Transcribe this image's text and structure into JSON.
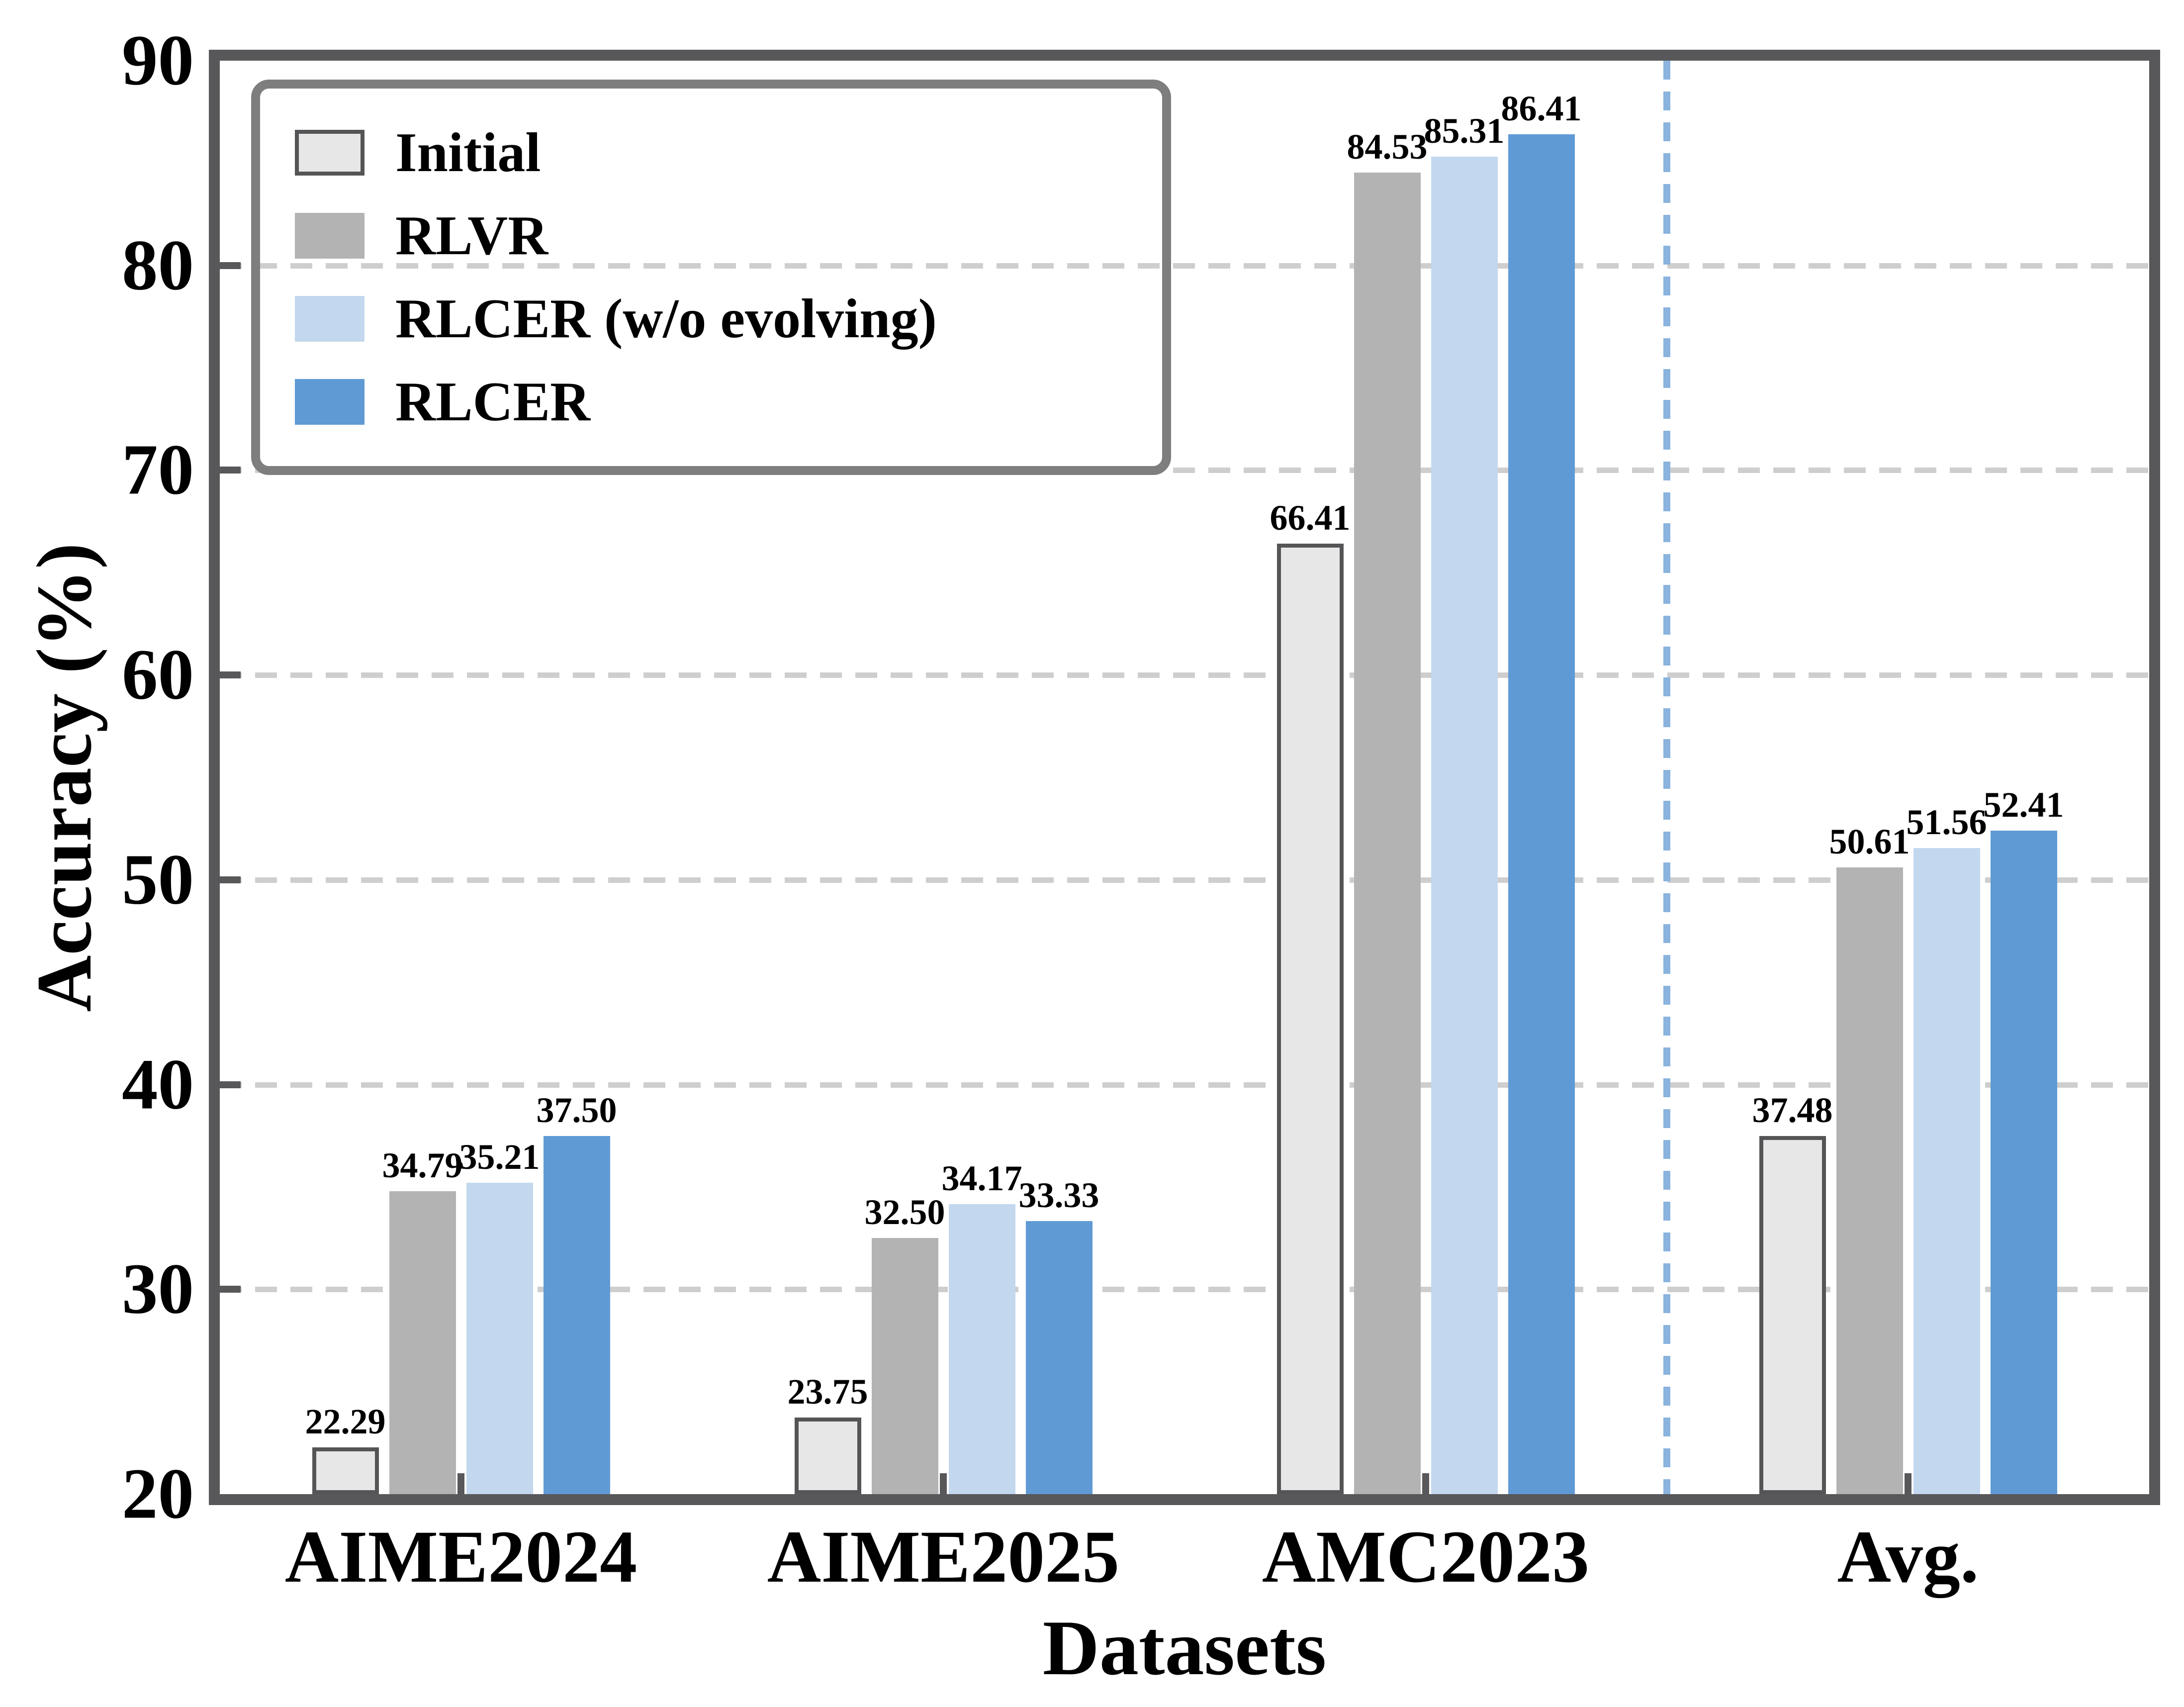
{
  "chart_data": {
    "type": "bar",
    "title": "",
    "xlabel": "Datasets",
    "ylabel": "Accuracy (%)",
    "ylim": [
      20,
      90
    ],
    "yticks": [
      20,
      30,
      40,
      50,
      60,
      70,
      80,
      90
    ],
    "gridline_values": [
      30,
      40,
      50,
      60,
      70,
      80
    ],
    "grid": "dashed-horizontal",
    "legend_position": "upper-left",
    "value_labels_decimals": 2,
    "categories": [
      "AIME2024",
      "AIME2025",
      "AMC2023",
      "Avg."
    ],
    "series": [
      {
        "name": "Initial",
        "color": "#e7e7e7",
        "edge_color": "#555557",
        "values": [
          22.29,
          23.75,
          66.41,
          37.48
        ]
      },
      {
        "name": "RLVR",
        "color": "#b3b3b3",
        "values": [
          34.79,
          32.5,
          84.53,
          50.61
        ]
      },
      {
        "name": "RLCER (w/o evolving)",
        "color": "#c3d8ee",
        "values": [
          35.21,
          34.17,
          85.31,
          51.56
        ]
      },
      {
        "name": "RLCER",
        "color": "#5f9ad5",
        "values": [
          37.5,
          33.33,
          86.41,
          52.41
        ]
      }
    ],
    "separator": {
      "between_categories": [
        "AMC2023",
        "Avg."
      ],
      "style": "dashed-vertical",
      "color": "#8ab3de"
    },
    "style_colors": {
      "axis_spine": "#58585a",
      "grid": "#cecece",
      "legend_border": "#7e7e7e",
      "text": "#000000"
    }
  }
}
